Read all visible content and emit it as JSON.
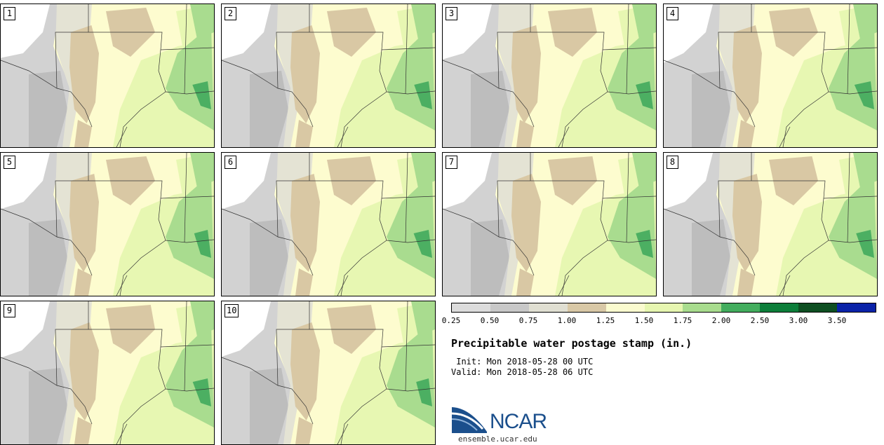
{
  "stamps": [
    {
      "label": "1"
    },
    {
      "label": "2"
    },
    {
      "label": "3"
    },
    {
      "label": "4"
    },
    {
      "label": "5"
    },
    {
      "label": "6"
    },
    {
      "label": "7"
    },
    {
      "label": "8"
    },
    {
      "label": "9"
    },
    {
      "label": "10"
    }
  ],
  "colorbar": {
    "ticks": [
      "0.25",
      "0.50",
      "0.75",
      "1.00",
      "1.25",
      "1.50",
      "1.75",
      "2.00",
      "2.50",
      "3.00",
      "3.50"
    ],
    "colors": [
      "#dcdcdc",
      "#c8c8c8",
      "#e0dfd2",
      "#d8c8a6",
      "#fafbcf",
      "#e6f6b0",
      "#a8dc8e",
      "#43ad5e",
      "#0c7e3a",
      "#0e4f22",
      "#0a22a8"
    ]
  },
  "title": "Precipitable water postage stamp (in.)",
  "init": " Init: Mon 2018-05-28 00 UTC",
  "valid": "Valid: Mon 2018-05-28 06 UTC",
  "logo": {
    "text": "NCAR",
    "site": "ensemble.ucar.edu",
    "color": "#1b4f8c"
  }
}
